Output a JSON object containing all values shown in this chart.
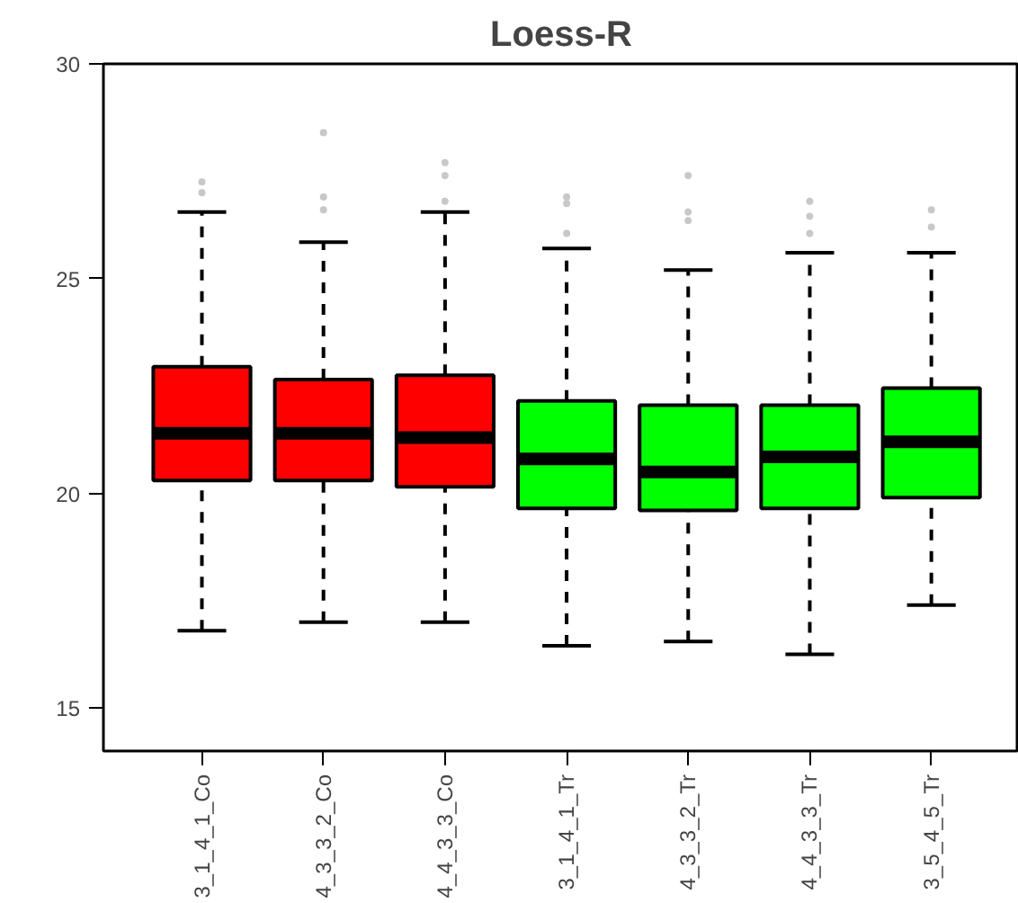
{
  "chart_data": {
    "type": "box",
    "title": "Loess-R",
    "categories": [
      "3_1_4_1_Co",
      "4_3_3_2_Co",
      "4_4_3_3_Co",
      "3_1_4_1_Tr",
      "4_3_3_2_Tr",
      "4_4_3_3_Tr",
      "3_5_4_5_Tr"
    ],
    "colors": [
      "#ff0000",
      "#ff0000",
      "#ff0000",
      "#00ff00",
      "#00ff00",
      "#00ff00",
      "#00ff00"
    ],
    "boxes": [
      {
        "low": 16.8,
        "q1": 20.3,
        "median": 21.4,
        "q3": 22.95,
        "high": 26.55,
        "outliers": [
          27.25,
          27.0
        ]
      },
      {
        "low": 17.0,
        "q1": 20.3,
        "median": 21.4,
        "q3": 22.65,
        "high": 25.85,
        "outliers": [
          28.4,
          26.9,
          26.6
        ]
      },
      {
        "low": 17.0,
        "q1": 20.15,
        "median": 21.3,
        "q3": 22.75,
        "high": 26.55,
        "outliers": [
          27.7,
          27.4,
          26.8
        ]
      },
      {
        "low": 16.45,
        "q1": 19.65,
        "median": 20.8,
        "q3": 22.15,
        "high": 25.7,
        "outliers": [
          26.9,
          26.75,
          26.05
        ]
      },
      {
        "low": 16.55,
        "q1": 19.6,
        "median": 20.5,
        "q3": 22.05,
        "high": 25.2,
        "outliers": [
          27.4,
          26.55,
          26.35
        ]
      },
      {
        "low": 16.25,
        "q1": 19.65,
        "median": 20.85,
        "q3": 22.05,
        "high": 25.6,
        "outliers": [
          26.8,
          26.45,
          26.05
        ]
      },
      {
        "low": 17.4,
        "q1": 19.9,
        "median": 21.2,
        "q3": 22.45,
        "high": 25.6,
        "outliers": [
          26.6,
          26.2
        ]
      }
    ],
    "ylim": [
      14,
      30
    ],
    "yticks": [
      15,
      20,
      25,
      30
    ],
    "grid": false
  }
}
